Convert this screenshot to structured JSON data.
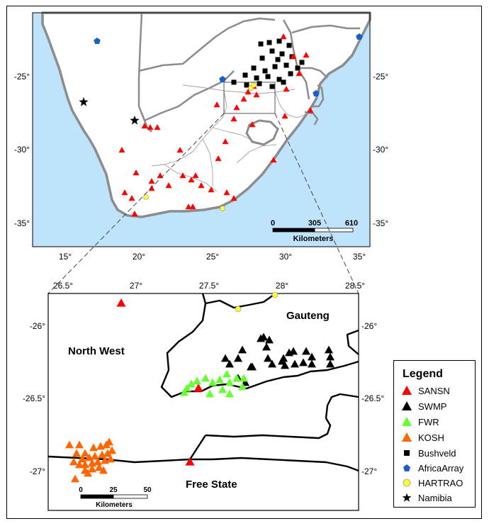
{
  "inset": {
    "lon_ticks": [
      "15°",
      "20°",
      "25°",
      "30°",
      "35°"
    ],
    "lat_ticks": [
      "-25°",
      "-30°",
      "-35°"
    ],
    "scalebar": {
      "values": [
        "0",
        "305",
        "610"
      ],
      "unit": "Kilometers"
    }
  },
  "detail": {
    "lon_ticks": [
      "26.5°",
      "27°",
      "27.5°",
      "28°",
      "28.5°"
    ],
    "lat_ticks": [
      "-26°",
      "-26.5°",
      "-27°"
    ],
    "regions": {
      "north_west": "North West",
      "gauteng": "Gauteng",
      "free_state": "Free State"
    },
    "scalebar": {
      "values": [
        "0",
        "25",
        "50"
      ],
      "unit": "Kilometers"
    }
  },
  "legend": {
    "title": "Legend",
    "items": [
      {
        "label": "SANSN",
        "symbol": "triangle-icon",
        "color": "#ff0000"
      },
      {
        "label": "SWMP",
        "symbol": "triangle-icon",
        "color": "#000000"
      },
      {
        "label": "FWR",
        "symbol": "triangle-icon",
        "color": "#66ff33"
      },
      {
        "label": "KOSH",
        "symbol": "triangle-icon",
        "color": "#ff6600"
      },
      {
        "label": "Bushveld",
        "symbol": "square-icon",
        "color": "#000000"
      },
      {
        "label": "AfricaArray",
        "symbol": "pentagon-icon",
        "color": "#1a5fc9"
      },
      {
        "label": "HARTRAO",
        "symbol": "circle-icon",
        "color": "#ffff33"
      },
      {
        "label": "Namibia",
        "symbol": "star-icon",
        "color": "#000000"
      }
    ]
  },
  "colors": {
    "ocean": "#bfe3fa",
    "land": "#ffffff",
    "border": "#8c8c8c"
  }
}
